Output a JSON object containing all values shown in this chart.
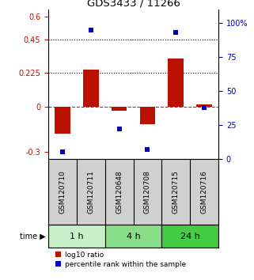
{
  "title": "GDS3433 / 11266",
  "samples": [
    "GSM120710",
    "GSM120711",
    "GSM120648",
    "GSM120708",
    "GSM120715",
    "GSM120716"
  ],
  "log10_ratio": [
    -0.18,
    0.245,
    -0.03,
    -0.115,
    0.32,
    0.015
  ],
  "percentile_rank": [
    5,
    95,
    22,
    7,
    93,
    38
  ],
  "time_groups": [
    {
      "label": "1 h",
      "cols": [
        0,
        1
      ],
      "color": "#c8f0c8"
    },
    {
      "label": "4 h",
      "cols": [
        2,
        3
      ],
      "color": "#88dd88"
    },
    {
      "label": "24 h",
      "cols": [
        4,
        5
      ],
      "color": "#44cc44"
    }
  ],
  "ylim_left": [
    -0.35,
    0.65
  ],
  "ylim_right": [
    0,
    110
  ],
  "yticks_left": [
    -0.3,
    0,
    0.225,
    0.45,
    0.6
  ],
  "ytick_labels_left": [
    "-0.3",
    "0",
    "0.225",
    "0.45",
    "0.6"
  ],
  "yticks_right": [
    0,
    25,
    50,
    75,
    100
  ],
  "ytick_labels_right": [
    "0",
    "25",
    "50",
    "75",
    "100%"
  ],
  "hlines": [
    0.45,
    0.225
  ],
  "bar_color": "#bb1100",
  "dot_color": "#0000bb",
  "dashed_zero_color": "#cc2200",
  "background_color": "#ffffff",
  "bar_width": 0.55,
  "sample_bg": "#d0d0d0",
  "legend_items": [
    "log10 ratio",
    "percentile rank within the sample"
  ]
}
